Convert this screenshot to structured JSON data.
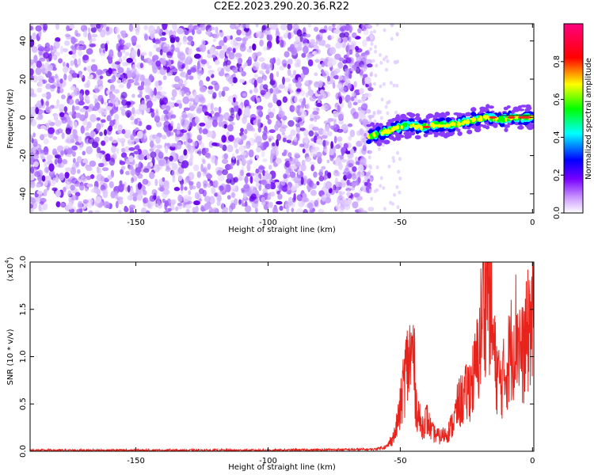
{
  "title": "C2E2.2023.290.20.36.R22",
  "chart_data": [
    {
      "type": "heatmap",
      "title": "C2E2.2023.290.20.36.R22",
      "xlabel": "Height of straight line (km)",
      "ylabel": "Frequency (Hz)",
      "xlim": [
        -190,
        0.5
      ],
      "ylim": [
        -50,
        49
      ],
      "xticks": [
        -150,
        -100,
        -50,
        0
      ],
      "yticks": [
        -40,
        -20,
        0,
        20,
        40
      ],
      "colorbar": {
        "label": "Normalized spectral amplitude",
        "range": [
          0.0,
          1.0
        ],
        "ticks": [
          0.0,
          0.2,
          0.4,
          0.6,
          0.8
        ],
        "colors": [
          "#ffffff",
          "#cc99ff",
          "#7700ff",
          "#0000ff",
          "#00ffff",
          "#00ff00",
          "#ffff00",
          "#ff0000",
          "#ff0080"
        ]
      },
      "noise_region_x": [
        -190,
        -62
      ],
      "signal_track": {
        "x": [
          -62,
          -57,
          -52,
          -47,
          -42,
          -37,
          -32,
          -27,
          -22,
          -17,
          -12,
          -7,
          -2,
          0
        ],
        "y": [
          -10,
          -8,
          -6,
          -4,
          -5,
          -4,
          -4,
          -3,
          -1,
          0,
          -1,
          0,
          0,
          0
        ]
      }
    },
    {
      "type": "line",
      "xlabel": "Height of straight line (km)",
      "ylabel": "SNR (10 * v/v)",
      "y_scale_label": "(x10",
      "y_scale_exp": "4",
      "y_scale_close": ")",
      "xlim": [
        -190,
        0.5
      ],
      "ylim": [
        0,
        2.0
      ],
      "xticks": [
        -150,
        -100,
        -50,
        0
      ],
      "yticks": [
        0.0,
        0.5,
        1.0,
        1.5,
        2.0
      ],
      "series": [
        {
          "color": "#e8231c",
          "x": [
            -190,
            -150,
            -100,
            -60,
            -55,
            -52,
            -50,
            -48,
            -46,
            -45,
            -44,
            -42,
            -40,
            -38,
            -35,
            -32,
            -30,
            -28,
            -25,
            -22,
            -20,
            -19,
            -18,
            -17,
            -16,
            -15,
            -14,
            -12,
            -10,
            -8,
            -6,
            -4,
            -2,
            -1,
            0
          ],
          "y": [
            0.01,
            0.01,
            0.01,
            0.02,
            0.05,
            0.18,
            0.45,
            0.85,
            1.0,
            1.05,
            0.5,
            0.25,
            0.35,
            0.2,
            0.15,
            0.2,
            0.3,
            0.5,
            0.6,
            0.8,
            1.1,
            1.5,
            1.7,
            1.95,
            1.6,
            1.2,
            0.9,
            0.7,
            0.85,
            1.1,
            1.3,
            1.0,
            1.2,
            1.4,
            1.35
          ]
        }
      ]
    }
  ]
}
